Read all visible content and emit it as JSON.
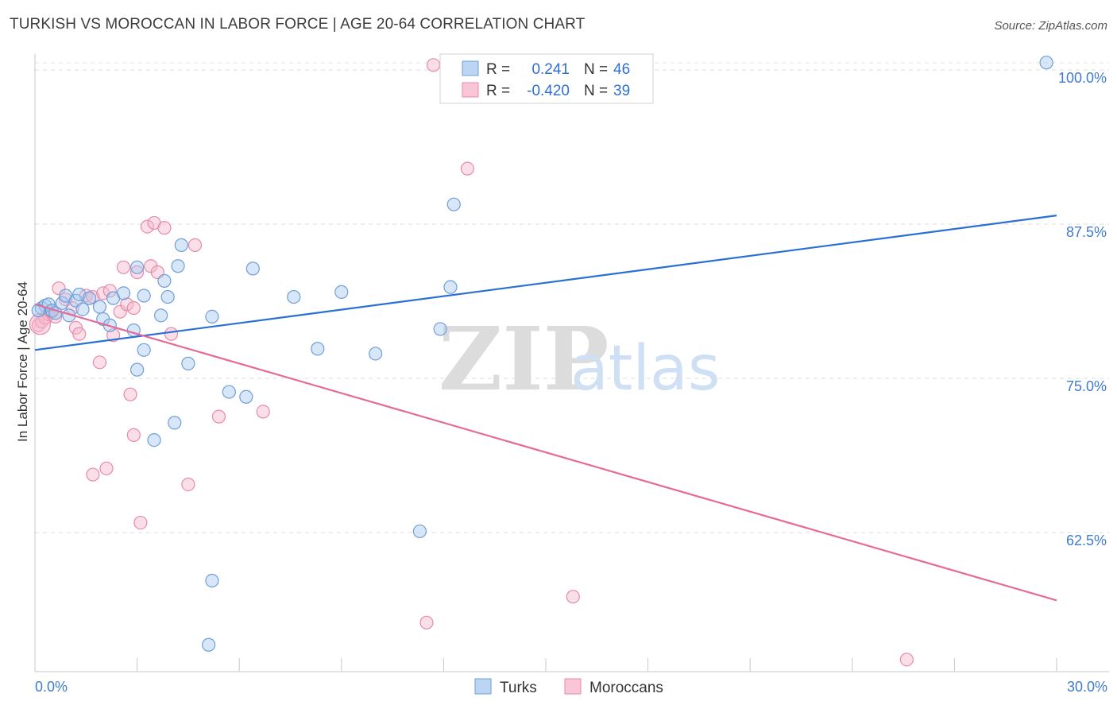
{
  "header": {
    "title": "TURKISH VS MOROCCAN IN LABOR FORCE | AGE 20-64 CORRELATION CHART",
    "source": "Source: ZipAtlas.com"
  },
  "watermark": {
    "zip": "ZIP",
    "atlas": "atlas"
  },
  "legend": {
    "r_label": "R =",
    "n_label": "N =",
    "rows": [
      {
        "r": "0.241",
        "n": "46"
      },
      {
        "r": "-0.420",
        "n": "39"
      }
    ]
  },
  "colors": {
    "turks_fill": "#a9c9ef",
    "turks_stroke": "#6f9ed9",
    "turks_line": "#2a6fd3",
    "moroccans_fill": "#f5b8cb",
    "moroccans_stroke": "#e88aa8",
    "moroccans_line": "#e56a98",
    "axis_text": "#3f7bd0"
  },
  "chart_data": {
    "type": "scatter",
    "title": "TURKISH VS MOROCCAN IN LABOR FORCE | AGE 20-64 CORRELATION CHART",
    "xlabel": "",
    "ylabel": "In Labor Force | Age 20-64",
    "xlim": [
      0,
      30
    ],
    "ylim": [
      52,
      102
    ],
    "x_tick_labels": [
      "0.0%",
      "30.0%"
    ],
    "y_ticks": [
      62.5,
      75.0,
      87.5,
      100.0
    ],
    "y_tick_labels": [
      "62.5%",
      "75.0%",
      "87.5%",
      "100.0%"
    ],
    "legend_position": "bottom-center",
    "series": [
      {
        "name": "Turks",
        "r": 0.241,
        "n": 46,
        "trend": {
          "x": [
            0,
            30
          ],
          "y": [
            77.3,
            88.2
          ]
        },
        "points": [
          [
            0.2,
            80.7
          ],
          [
            0.3,
            80.9
          ],
          [
            0.4,
            81.0
          ],
          [
            0.5,
            80.5
          ],
          [
            0.6,
            80.3
          ],
          [
            0.8,
            81.1
          ],
          [
            0.9,
            81.7
          ],
          [
            1.0,
            80.1
          ],
          [
            1.2,
            81.3
          ],
          [
            1.3,
            81.8
          ],
          [
            1.4,
            80.6
          ],
          [
            1.6,
            81.5
          ],
          [
            1.9,
            80.8
          ],
          [
            2.0,
            79.8
          ],
          [
            2.2,
            79.3
          ],
          [
            2.3,
            81.5
          ],
          [
            2.6,
            81.9
          ],
          [
            2.9,
            78.9
          ],
          [
            3.0,
            84.0
          ],
          [
            3.2,
            81.7
          ],
          [
            3.2,
            77.3
          ],
          [
            3.0,
            75.7
          ],
          [
            3.5,
            70.0
          ],
          [
            3.7,
            80.1
          ],
          [
            3.8,
            82.9
          ],
          [
            3.9,
            81.6
          ],
          [
            4.1,
            71.4
          ],
          [
            4.2,
            84.1
          ],
          [
            4.3,
            85.8
          ],
          [
            4.5,
            76.2
          ],
          [
            5.2,
            80.0
          ],
          [
            5.2,
            58.6
          ],
          [
            5.1,
            53.4
          ],
          [
            5.7,
            73.9
          ],
          [
            6.2,
            73.5
          ],
          [
            6.4,
            83.9
          ],
          [
            7.6,
            81.6
          ],
          [
            8.3,
            77.4
          ],
          [
            9.0,
            82.0
          ],
          [
            10.0,
            77.0
          ],
          [
            11.3,
            62.6
          ],
          [
            11.9,
            79.0
          ],
          [
            12.2,
            82.4
          ],
          [
            12.3,
            89.1
          ],
          [
            29.7,
            100.6
          ],
          [
            0.1,
            80.5
          ]
        ]
      },
      {
        "name": "Moroccans",
        "r": -0.42,
        "n": 39,
        "trend": {
          "x": [
            0,
            30
          ],
          "y": [
            81.0,
            57.0
          ]
        },
        "points": [
          [
            0.1,
            79.3
          ],
          [
            0.2,
            79.6
          ],
          [
            0.3,
            79.9
          ],
          [
            0.4,
            80.2
          ],
          [
            0.5,
            80.4
          ],
          [
            0.6,
            80.0
          ],
          [
            0.7,
            82.3
          ],
          [
            0.9,
            81.4
          ],
          [
            1.1,
            80.7
          ],
          [
            1.2,
            79.1
          ],
          [
            1.3,
            78.6
          ],
          [
            1.5,
            81.7
          ],
          [
            1.7,
            81.6
          ],
          [
            1.9,
            76.3
          ],
          [
            2.0,
            81.9
          ],
          [
            2.2,
            82.1
          ],
          [
            2.3,
            78.5
          ],
          [
            2.5,
            80.4
          ],
          [
            2.6,
            84.0
          ],
          [
            3.0,
            83.6
          ],
          [
            2.7,
            81.0
          ],
          [
            2.9,
            80.7
          ],
          [
            3.4,
            84.1
          ],
          [
            3.3,
            87.3
          ],
          [
            3.5,
            87.6
          ],
          [
            3.6,
            83.6
          ],
          [
            3.8,
            87.2
          ],
          [
            4.0,
            78.6
          ],
          [
            4.7,
            85.8
          ],
          [
            2.1,
            67.7
          ],
          [
            2.8,
            73.7
          ],
          [
            2.9,
            70.4
          ],
          [
            1.7,
            67.2
          ],
          [
            3.1,
            63.3
          ],
          [
            4.5,
            66.4
          ],
          [
            5.4,
            71.9
          ],
          [
            6.7,
            72.3
          ],
          [
            11.5,
            55.2
          ],
          [
            15.8,
            57.3
          ]
        ],
        "extra_points": [
          [
            11.7,
            100.4
          ],
          [
            12.7,
            92.0
          ],
          [
            25.6,
            52.2
          ]
        ]
      }
    ]
  },
  "bottom_legend": {
    "items": [
      "Turks",
      "Moroccans"
    ]
  }
}
